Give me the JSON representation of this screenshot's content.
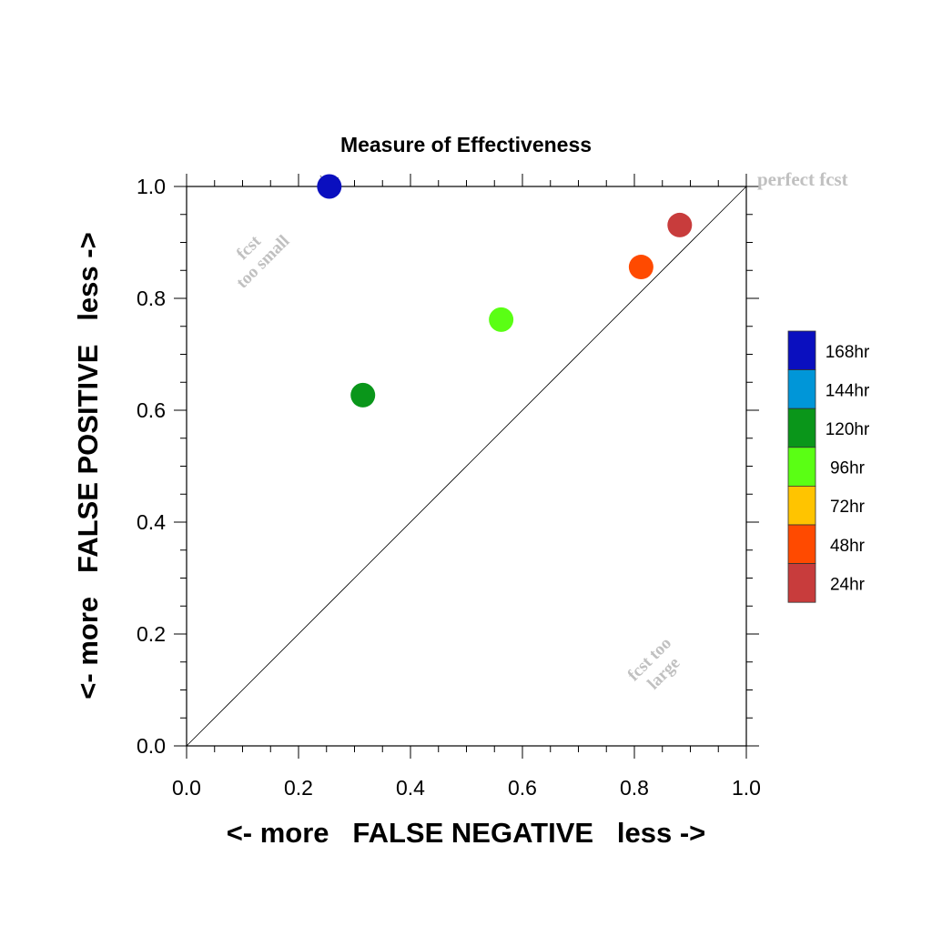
{
  "chart_data": {
    "type": "scatter",
    "title": "Measure of Effectiveness",
    "xlabel": "<- more   FALSE NEGATIVE   less ->",
    "ylabel": "<- more   FALSE POSITIVE   less ->",
    "xlim": [
      0.0,
      1.0
    ],
    "ylim": [
      0.0,
      1.0
    ],
    "x_ticks": [
      "0.0",
      "0.2",
      "0.4",
      "0.6",
      "0.8",
      "1.0"
    ],
    "y_ticks": [
      "0.0",
      "0.2",
      "0.4",
      "0.6",
      "0.8",
      "1.0"
    ],
    "grid": false,
    "diagonal_line": true,
    "annotations": {
      "perfect": "perfect fcst",
      "too_small_line1": "fcst",
      "too_small_line2": "too small",
      "too_large_line1": "fcst too",
      "too_large_line2": "large"
    },
    "legend": {
      "placement": "right",
      "entries": [
        {
          "label": "168hr",
          "color": "#0a0fbf"
        },
        {
          "label": "144hr",
          "color": "#0096d8"
        },
        {
          "label": "120hr",
          "color": "#0a961a"
        },
        {
          "label": "96hr",
          "color": "#5aff14"
        },
        {
          "label": "72hr",
          "color": "#ffc400"
        },
        {
          "label": "48hr",
          "color": "#ff4a00"
        },
        {
          "label": "24hr",
          "color": "#c83c3c"
        }
      ]
    },
    "points": [
      {
        "series": "168hr",
        "x": 0.255,
        "y": 1.0,
        "color": "#0a0fbf"
      },
      {
        "series": "120hr",
        "x": 0.315,
        "y": 0.627,
        "color": "#0a961a"
      },
      {
        "series": "96hr",
        "x": 0.562,
        "y": 0.762,
        "color": "#5aff14"
      },
      {
        "series": "48hr",
        "x": 0.812,
        "y": 0.856,
        "color": "#ff4a00"
      },
      {
        "series": "24hr",
        "x": 0.881,
        "y": 0.931,
        "color": "#c83c3c"
      }
    ]
  }
}
